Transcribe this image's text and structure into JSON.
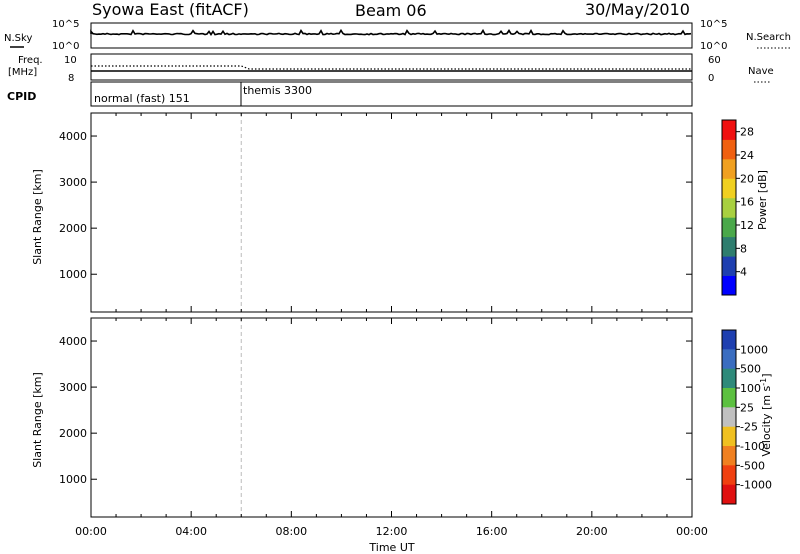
{
  "header": {
    "station": "Syowa East (fitACF)",
    "beam": "Beam 06",
    "date": "30/May/2010"
  },
  "noise_panel": {
    "left_label": "N.Sky",
    "right_label": "N.Search",
    "left_ticks": [
      "10^5",
      "10^0"
    ],
    "right_ticks": [
      "10^5",
      "10^0"
    ]
  },
  "freq_panel": {
    "left_label_line1": "Freq.",
    "left_label_line2": "[MHz]",
    "right_label": "Nave",
    "left_ticks": [
      "10",
      "8"
    ],
    "right_ticks": [
      "60",
      "0"
    ]
  },
  "cpid_panel": {
    "label": "CPID",
    "modes": [
      {
        "name": "normal (fast) 151",
        "start_hour": 0
      },
      {
        "name": "themis 3300",
        "start_hour": 6
      }
    ]
  },
  "chart_data": [
    {
      "type": "heatmap",
      "title": "",
      "ylabel": "Slant Range [km]",
      "xlabel": "",
      "ylim": [
        180,
        4500
      ],
      "y_ticks": [
        "1000",
        "2000",
        "3000",
        "4000"
      ],
      "y_tick_values": [
        1000,
        2000,
        3000,
        4000
      ],
      "x_range_hours": [
        0,
        24
      ],
      "colorbar": {
        "label": "Power [dB]",
        "ticks": [
          "4",
          "8",
          "12",
          "16",
          "20",
          "24",
          "28"
        ],
        "range": [
          0,
          30
        ],
        "colors": [
          "#0000ff",
          "#1e3fb0",
          "#2e7d6e",
          "#4aa84a",
          "#a8d040",
          "#f0d020",
          "#f0a020",
          "#f06010",
          "#f01010"
        ]
      }
    },
    {
      "type": "heatmap",
      "title": "",
      "ylabel": "Slant Range [km]",
      "xlabel": "Time UT",
      "ylim": [
        180,
        4500
      ],
      "y_ticks": [
        "1000",
        "2000",
        "3000",
        "4000"
      ],
      "y_tick_values": [
        1000,
        2000,
        3000,
        4000
      ],
      "x_range_hours": [
        0,
        24
      ],
      "x_ticks": [
        "00:00",
        "04:00",
        "08:00",
        "12:00",
        "16:00",
        "20:00",
        "00:00"
      ],
      "x_tick_values": [
        0,
        4,
        8,
        12,
        16,
        20,
        24
      ],
      "colorbar": {
        "label": "Velocity [m s^-1]",
        "ticks": [
          "1000",
          "500",
          "100",
          "25",
          "-25",
          "-100",
          "-500",
          "-1000"
        ],
        "colors": [
          "#1e3fb0",
          "#3a6dc0",
          "#2e8a7a",
          "#5cc040",
          "#c0c0c0",
          "#f0c020",
          "#f08020",
          "#f04010",
          "#e01010"
        ]
      }
    }
  ]
}
